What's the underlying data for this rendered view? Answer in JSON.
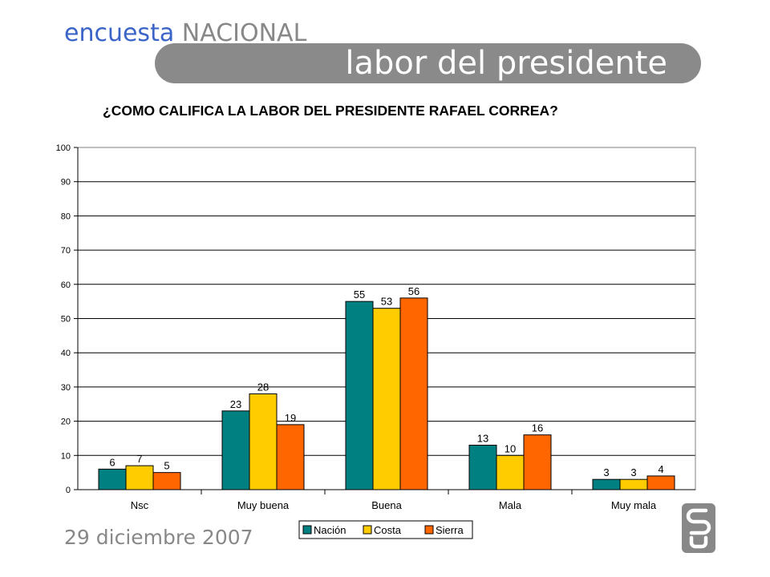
{
  "header": {
    "brand_part1": "encuesta",
    "brand_part2": "NACIONAL",
    "banner_title": "labor del presidente"
  },
  "footer": {
    "date": "29 diciembre 2007"
  },
  "colors": {
    "banner": "#8a8a8a",
    "brand_blue": "#3a64c8",
    "brand_gray": "#888888",
    "logo": "#888888"
  },
  "icons": {
    "logo": "cedatos-logo"
  },
  "chart_data": {
    "type": "bar",
    "title": "¿COMO CALIFICA LA LABOR DEL PRESIDENTE RAFAEL CORREA?",
    "xlabel": "",
    "ylabel": "",
    "categories": [
      "Nsc",
      "Muy buena",
      "Buena",
      "Mala",
      "Muy mala"
    ],
    "series": [
      {
        "name": "Nación",
        "color": "#008080",
        "values": [
          6,
          23,
          55,
          13,
          3
        ]
      },
      {
        "name": "Costa",
        "color": "#ffcc00",
        "values": [
          7,
          28,
          53,
          10,
          3
        ]
      },
      {
        "name": "Sierra",
        "color": "#ff6600",
        "values": [
          5,
          19,
          56,
          16,
          4
        ]
      }
    ],
    "ylim": [
      0,
      100
    ],
    "yticks": [
      0,
      10,
      20,
      30,
      40,
      50,
      60,
      70,
      80,
      90,
      100
    ],
    "grid": true,
    "data_labels": true,
    "legend_position": "bottom"
  }
}
